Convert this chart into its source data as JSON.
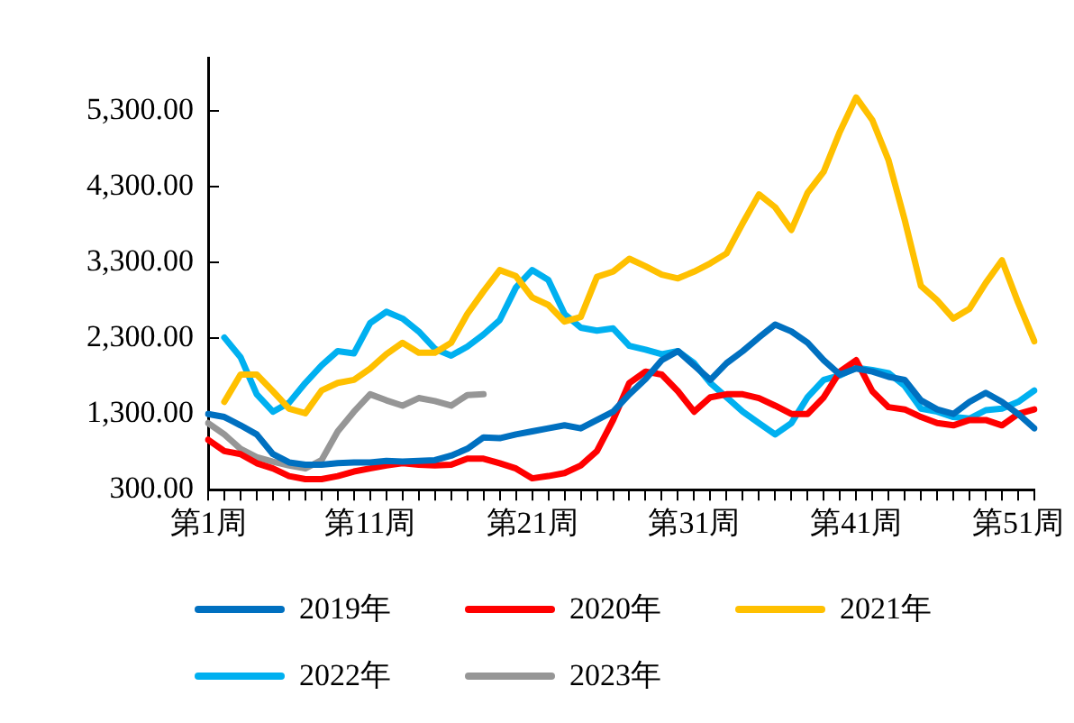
{
  "chart_data": {
    "type": "line",
    "categories": [
      "第1周",
      null,
      null,
      null,
      null,
      null,
      null,
      null,
      null,
      null,
      "第11周",
      null,
      null,
      null,
      null,
      null,
      null,
      null,
      null,
      null,
      "第21周",
      null,
      null,
      null,
      null,
      null,
      null,
      null,
      null,
      null,
      "第31周",
      null,
      null,
      null,
      null,
      null,
      null,
      null,
      null,
      null,
      "第41周",
      null,
      null,
      null,
      null,
      null,
      null,
      null,
      null,
      null,
      "第51周",
      null
    ],
    "ylim": [
      300,
      6000
    ],
    "yticks": [
      {
        "value": 300,
        "label": "300.00"
      },
      {
        "value": 1300,
        "label": "1,300.00"
      },
      {
        "value": 2300,
        "label": "2,300.00"
      },
      {
        "value": 3300,
        "label": "3,300.00"
      },
      {
        "value": 4300,
        "label": "4,300.00"
      },
      {
        "value": 5300,
        "label": "5,300.00"
      }
    ],
    "grid": false,
    "legend": "bottom",
    "marker": "none",
    "line_style": "solid",
    "series": [
      {
        "name": "2019年",
        "color": "#0070c0",
        "values": [
          1300,
          1260,
          1150,
          1030,
          770,
          660,
          630,
          630,
          650,
          660,
          660,
          680,
          670,
          680,
          690,
          750,
          840,
          990,
          980,
          1030,
          1070,
          1110,
          1150,
          1110,
          1220,
          1330,
          1560,
          1760,
          2010,
          2130,
          1940,
          1750,
          1970,
          2130,
          2310,
          2480,
          2390,
          2240,
          2010,
          1820,
          1900,
          1860,
          1790,
          1750,
          1480,
          1360,
          1300,
          1460,
          1580,
          1460,
          1300,
          1110
        ]
      },
      {
        "name": "2020年",
        "color": "#ff0000",
        "values": [
          960,
          810,
          770,
          650,
          580,
          480,
          440,
          440,
          480,
          540,
          580,
          620,
          650,
          630,
          620,
          630,
          710,
          710,
          650,
          580,
          450,
          480,
          520,
          620,
          810,
          1220,
          1710,
          1860,
          1820,
          1600,
          1330,
          1520,
          1560,
          1560,
          1510,
          1410,
          1300,
          1300,
          1520,
          1860,
          2010,
          1600,
          1390,
          1360,
          1260,
          1180,
          1150,
          1220,
          1220,
          1150,
          1300,
          1360
        ]
      },
      {
        "name": "2021年",
        "color": "#ffc000",
        "values": [
          null,
          1460,
          1820,
          1820,
          1600,
          1370,
          1310,
          1610,
          1710,
          1750,
          1900,
          2090,
          2240,
          2110,
          2110,
          2240,
          2620,
          2920,
          3200,
          3120,
          2840,
          2740,
          2520,
          2580,
          3110,
          3180,
          3350,
          3250,
          3140,
          3090,
          3180,
          3290,
          3420,
          3820,
          4200,
          4030,
          3730,
          4220,
          4500,
          5030,
          5480,
          5180,
          4650,
          3860,
          2990,
          2800,
          2560,
          2690,
          3030,
          3330,
          2770,
          2260
        ]
      },
      {
        "name": "2022年",
        "color": "#00b0f0",
        "values": [
          null,
          2310,
          2050,
          1560,
          1330,
          1450,
          1710,
          1940,
          2130,
          2100,
          2500,
          2650,
          2560,
          2390,
          2160,
          2070,
          2190,
          2350,
          2540,
          2970,
          3200,
          3070,
          2620,
          2440,
          2400,
          2430,
          2200,
          2150,
          2090,
          2130,
          1970,
          1710,
          1520,
          1330,
          1180,
          1030,
          1180,
          1520,
          1750,
          1810,
          1910,
          1880,
          1840,
          1670,
          1370,
          1330,
          1260,
          1240,
          1350,
          1370,
          1460,
          1610
        ]
      },
      {
        "name": "2023年",
        "color": "#969696",
        "values": [
          1180,
          1030,
          840,
          730,
          670,
          620,
          580,
          690,
          1070,
          1330,
          1560,
          1480,
          1410,
          1510,
          1470,
          1410,
          1550,
          1560,
          null,
          null,
          null,
          null,
          null,
          null,
          null,
          null,
          null,
          null,
          null,
          null,
          null,
          null,
          null,
          null,
          null,
          null,
          null,
          null,
          null,
          null,
          null,
          null,
          null,
          null,
          null,
          null,
          null,
          null,
          null,
          null,
          null,
          null
        ]
      }
    ]
  }
}
